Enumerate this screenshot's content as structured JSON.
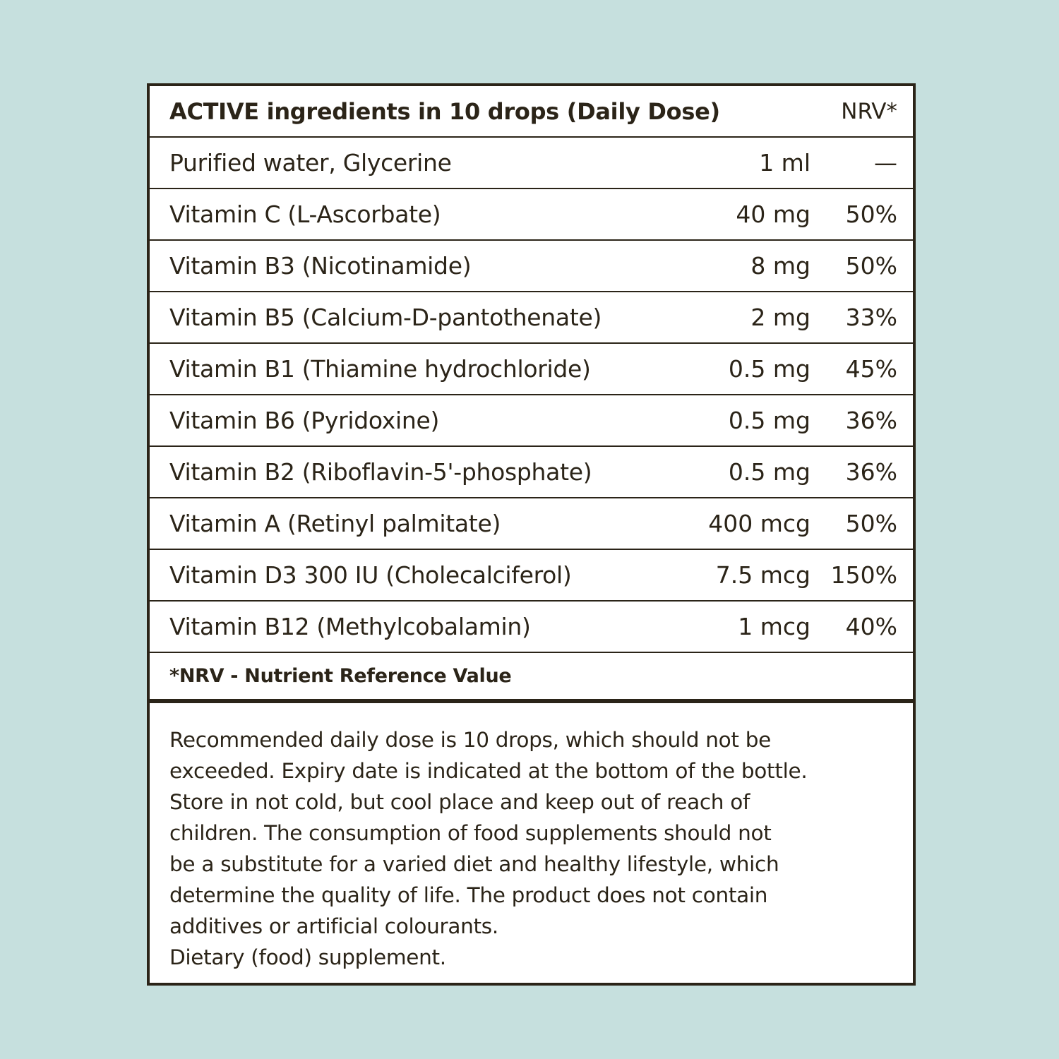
{
  "header": {
    "title": "ACTIVE ingredients in 10 drops (Daily Dose)",
    "nrv_label": "NRV*"
  },
  "rows": [
    {
      "name": "Purified water, Glycerine",
      "amount": "1 ml",
      "nrv": "—"
    },
    {
      "name": "Vitamin C (L-Ascorbate)",
      "amount": "40 mg",
      "nrv": "50%"
    },
    {
      "name": "Vitamin B3 (Nicotinamide)",
      "amount": "8 mg",
      "nrv": "50%"
    },
    {
      "name": "Vitamin B5 (Calcium-D-pantothenate)",
      "amount": "2 mg",
      "nrv": "33%"
    },
    {
      "name": "Vitamin B1 (Thiamine hydrochloride)",
      "amount": "0.5 mg",
      "nrv": "45%"
    },
    {
      "name": "Vitamin B6 (Pyridoxine)",
      "amount": "0.5 mg",
      "nrv": "36%"
    },
    {
      "name": "Vitamin B2 (Riboflavin-5'-phosphate)",
      "amount": "0.5 mg",
      "nrv": "36%"
    },
    {
      "name": "Vitamin A (Retinyl palmitate)",
      "amount": "400 mcg",
      "nrv": "50%"
    },
    {
      "name": "Vitamin D3  300 IU (Cholecalciferol)",
      "amount": "7.5 mcg",
      "nrv": "150%"
    },
    {
      "name": "Vitamin B12 (Methylcobalamin)",
      "amount": "1 mcg",
      "nrv": "40%"
    }
  ],
  "footnote": "*NRV - Nutrient Reference Value",
  "notes": [
    "Recommended daily dose is 10 drops, which should not be",
    "exceeded. Expiry date is indicated at the bottom of the bottle.",
    "Store in not cold, but cool place and keep out of reach of",
    "children. The consumption of food supplements should not",
    "be a substitute for a varied diet and healthy lifestyle, which",
    "determine the quality of life. The product does not contain",
    "additives or artificial colourants.",
    "Dietary (food) supplement."
  ],
  "colors": {
    "background": "#c6e0de",
    "ink": "#2b2418",
    "panel": "#ffffff"
  }
}
